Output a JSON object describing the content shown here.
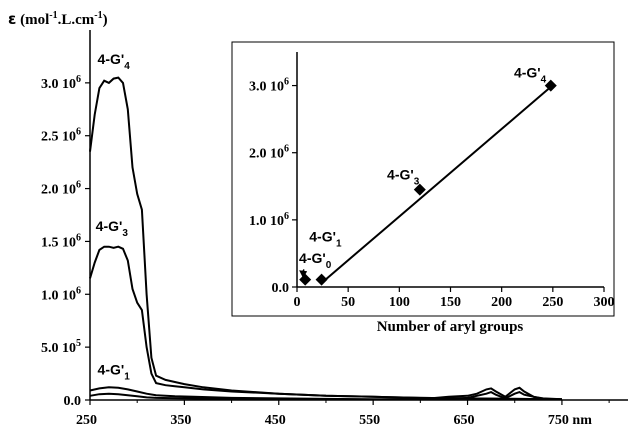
{
  "chart_data": [
    {
      "type": "line",
      "title": "",
      "ylabel": "ε (mol-1.L.cm-1)",
      "ylabel_parts": {
        "symbol": "ε",
        "open": " (mol",
        "sup1": "-1",
        "mid": ".L.cm",
        "sup2": "-1",
        "close": ")"
      },
      "xlabel": "",
      "xunit": "nm",
      "xlim": [
        250,
        820
      ],
      "ylim": [
        0,
        3500000
      ],
      "grid": false,
      "legend": "none",
      "x_ticks": [
        250,
        350,
        450,
        550,
        650,
        750
      ],
      "x_tick_labels": [
        "250",
        "350",
        "450",
        "550",
        "650",
        "750 nm"
      ],
      "y_ticks": [
        {
          "value": 0,
          "mantissa": "0.0",
          "exp": ""
        },
        {
          "value": 500000,
          "mantissa": "5.0 10",
          "exp": "5"
        },
        {
          "value": 1000000,
          "mantissa": "1.0 10",
          "exp": "6"
        },
        {
          "value": 1500000,
          "mantissa": "1.5 10",
          "exp": "6"
        },
        {
          "value": 2000000,
          "mantissa": "2.0 10",
          "exp": "6"
        },
        {
          "value": 2500000,
          "mantissa": "2.5 10",
          "exp": "6"
        },
        {
          "value": 3000000,
          "mantissa": "3.0 10",
          "exp": "6"
        }
      ],
      "series": [
        {
          "name": "4-G'4",
          "x": [
            250,
            255,
            260,
            265,
            270,
            275,
            280,
            285,
            290,
            295,
            300,
            305,
            310,
            315,
            320,
            330,
            340,
            350,
            370,
            400,
            450,
            500,
            550,
            600,
            650,
            700,
            750
          ],
          "y": [
            2350000,
            2700000,
            2950000,
            3020000,
            3000000,
            3040000,
            3050000,
            3000000,
            2750000,
            2200000,
            1950000,
            1800000,
            1000000,
            400000,
            230000,
            190000,
            170000,
            150000,
            120000,
            90000,
            60000,
            40000,
            30000,
            20000,
            15000,
            10000,
            8000
          ]
        },
        {
          "name": "4-G'3",
          "x": [
            250,
            255,
            260,
            265,
            270,
            275,
            280,
            285,
            290,
            295,
            300,
            305,
            310,
            315,
            320,
            330,
            340,
            350,
            370,
            400,
            450,
            500,
            550,
            600,
            650,
            700,
            750
          ],
          "y": [
            1150000,
            1300000,
            1420000,
            1450000,
            1450000,
            1440000,
            1450000,
            1430000,
            1320000,
            1050000,
            920000,
            850000,
            500000,
            250000,
            160000,
            140000,
            130000,
            120000,
            100000,
            80000,
            60000,
            40000,
            30000,
            20000,
            15000,
            10000,
            8000
          ]
        },
        {
          "name": "4-G'1",
          "x": [
            250,
            260,
            270,
            280,
            290,
            300,
            310,
            320,
            340,
            360,
            400,
            450,
            500,
            550,
            600,
            630,
            650,
            660,
            670,
            675,
            680,
            690,
            700,
            705,
            710,
            720,
            730,
            750
          ],
          "y": [
            90000,
            110000,
            120000,
            115000,
            100000,
            80000,
            60000,
            45000,
            35000,
            30000,
            20000,
            15000,
            10000,
            8000,
            8000,
            30000,
            40000,
            60000,
            100000,
            110000,
            80000,
            30000,
            100000,
            115000,
            80000,
            30000,
            15000,
            8000
          ]
        },
        {
          "name": "4-G'0",
          "x": [
            250,
            260,
            270,
            280,
            290,
            300,
            310,
            320,
            350,
            400,
            450,
            550,
            600,
            630,
            650,
            670,
            675,
            680,
            690,
            700,
            705,
            710,
            730,
            750
          ],
          "y": [
            40000,
            55000,
            60000,
            55000,
            45000,
            35000,
            25000,
            20000,
            15000,
            10000,
            8000,
            5000,
            5000,
            10000,
            20000,
            60000,
            75000,
            50000,
            15000,
            60000,
            75000,
            50000,
            10000,
            5000
          ]
        }
      ],
      "annotations": [
        {
          "base": "4-G'",
          "sub": "4",
          "x": 258,
          "y": 3180000
        },
        {
          "base": "4-G'",
          "sub": "3",
          "x": 256,
          "y": 1600000
        },
        {
          "base": "4-G'",
          "sub": "1",
          "x": 258,
          "y": 240000
        }
      ]
    },
    {
      "type": "scatter",
      "title": "",
      "xlabel": "Number of aryl groups",
      "ylabel": "",
      "xlim": [
        0,
        300
      ],
      "ylim": [
        0,
        3500000
      ],
      "x_ticks": [
        0,
        50,
        100,
        150,
        200,
        250,
        300
      ],
      "x_tick_labels": [
        "0",
        "50",
        "100",
        "150",
        "200",
        "250",
        "300"
      ],
      "y_ticks": [
        {
          "value": 0,
          "mantissa": "0.0",
          "exp": ""
        },
        {
          "value": 1000000,
          "mantissa": "1.0 10",
          "exp": "6"
        },
        {
          "value": 2000000,
          "mantissa": "2.0 10",
          "exp": "6"
        },
        {
          "value": 3000000,
          "mantissa": "3.0 10",
          "exp": "6"
        }
      ],
      "points": [
        {
          "name": "4-G'0",
          "x": 8,
          "y": 110000
        },
        {
          "name": "4-G'1",
          "x": 24,
          "y": 110000
        },
        {
          "name": "4-G'3",
          "x": 120,
          "y": 1450000
        },
        {
          "name": "4-G'4",
          "x": 248,
          "y": 3000000
        }
      ],
      "fit_line": {
        "x": [
          24,
          248
        ],
        "y": [
          60000,
          2980000
        ]
      },
      "annotations": [
        {
          "base": "4-G'",
          "sub": "4",
          "x": 212,
          "y": 3120000
        },
        {
          "base": "4-G'",
          "sub": "3",
          "x": 88,
          "y": 1600000
        },
        {
          "base": "4-G'",
          "sub": "1",
          "x": 12,
          "y": 680000
        },
        {
          "base": "4-G'",
          "sub": "0",
          "x": 2,
          "y": 360000
        }
      ]
    }
  ]
}
